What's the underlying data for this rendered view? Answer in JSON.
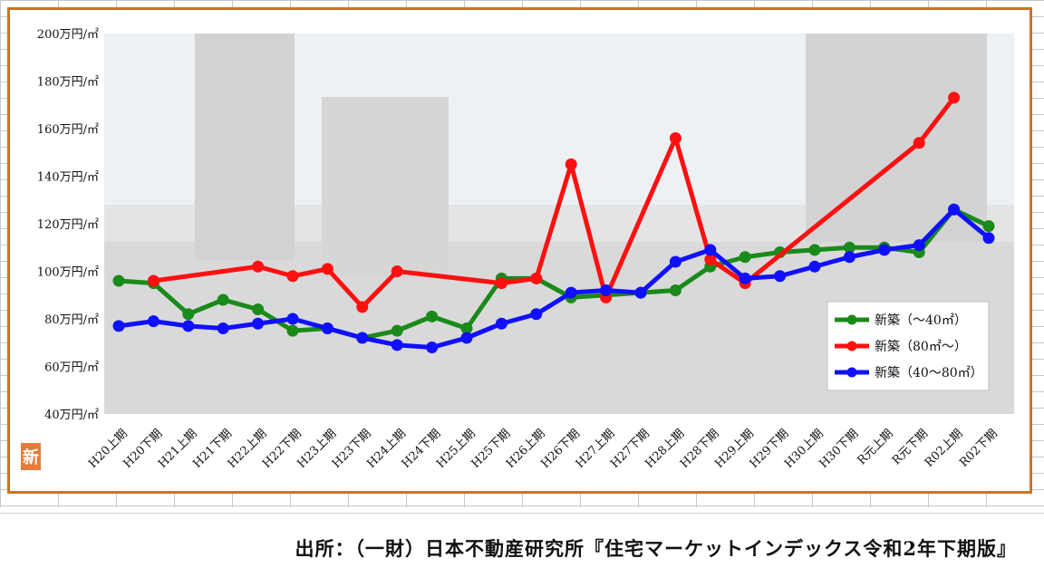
{
  "badge": "新",
  "source": "出所：（一財）日本不動産研究所『住宅マーケットインデックス令和2年下期版』",
  "chart_data": {
    "type": "line",
    "categories": [
      "H20上期",
      "H20下期",
      "H21上期",
      "H21下期",
      "H22上期",
      "H22下期",
      "H23上期",
      "H23下期",
      "H24上期",
      "H24下期",
      "H25上期",
      "H25下期",
      "H26上期",
      "H26下期",
      "H27上期",
      "H27下期",
      "H28上期",
      "H28下期",
      "H29上期",
      "H29下期",
      "H30上期",
      "H30下期",
      "R元上期",
      "R元下期",
      "R02上期",
      "R02下期"
    ],
    "y_tick_labels": [
      "40万円/㎡",
      "60万円/㎡",
      "80万円/㎡",
      "100万円/㎡",
      "120万円/㎡",
      "140万円/㎡",
      "160万円/㎡",
      "180万円/㎡",
      "200万円/㎡"
    ],
    "ylim": [
      40,
      200
    ],
    "legend_position": "bottom-right",
    "series": [
      {
        "name": "新築（～40㎡）",
        "color": "#1a8a1a",
        "values": [
          96,
          95,
          82,
          88,
          84,
          75,
          76,
          72,
          75,
          81,
          76,
          97,
          97,
          89,
          90,
          91,
          92,
          102,
          106,
          108,
          109,
          110,
          110,
          108,
          126,
          119
        ]
      },
      {
        "name": "新築（80㎡～）",
        "color": "#ff1010",
        "values": [
          null,
          96,
          null,
          null,
          102,
          98,
          101,
          85,
          100,
          null,
          null,
          95,
          97,
          145,
          89,
          null,
          156,
          105,
          95,
          null,
          null,
          null,
          null,
          154,
          173,
          null
        ]
      },
      {
        "name": "新築（40～80㎡）",
        "color": "#1010ff",
        "values": [
          77,
          79,
          77,
          76,
          78,
          80,
          76,
          72,
          69,
          68,
          72,
          78,
          82,
          91,
          92,
          91,
          104,
          109,
          97,
          98,
          102,
          106,
          109,
          111,
          126,
          114
        ]
      }
    ]
  }
}
